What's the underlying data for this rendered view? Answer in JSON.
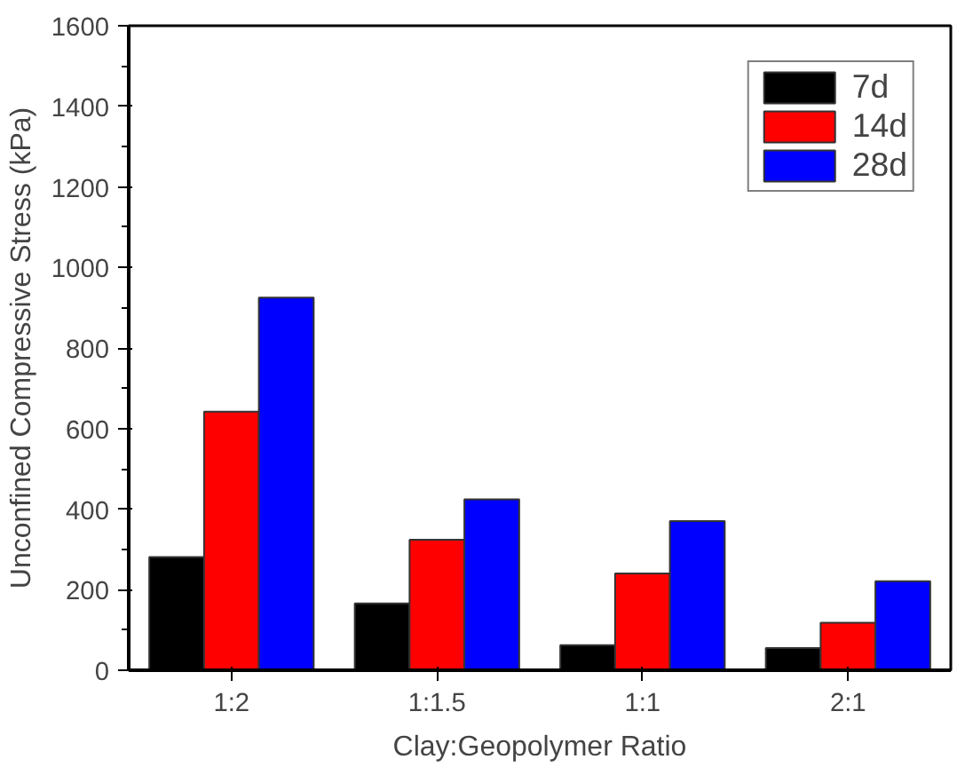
{
  "chart_data": {
    "type": "bar",
    "xlabel": "Clay:Geopolymer Ratio",
    "ylabel": "Unconfined Compressive Stress (kPa)",
    "categories": [
      "1:2",
      "1:1.5",
      "1:1",
      "2:1"
    ],
    "series": [
      {
        "name": "7d",
        "color": "#000000",
        "values": [
          281,
          166,
          62,
          55
        ]
      },
      {
        "name": "14d",
        "color": "#ff0000",
        "values": [
          642,
          324,
          240,
          118
        ]
      },
      {
        "name": "28d",
        "color": "#0000ff",
        "values": [
          925,
          424,
          370,
          221
        ]
      }
    ],
    "ylim": [
      0,
      1600
    ],
    "yticks": [
      0,
      200,
      400,
      600,
      800,
      1000,
      1200,
      1400,
      1600
    ],
    "grid": false,
    "legend": "top right"
  }
}
